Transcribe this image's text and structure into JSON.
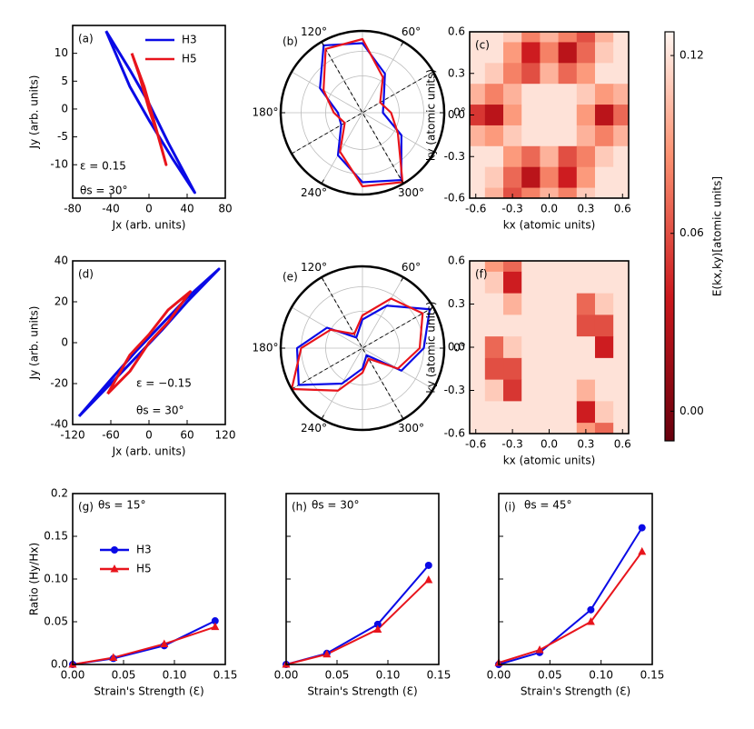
{
  "chart_data": [
    {
      "type": "line",
      "label": "(a)",
      "xlabel": "Jx (arb. units)",
      "ylabel": "Jy (arb. units)",
      "xlim": [
        -80,
        80
      ],
      "xticks": [
        -80,
        -40,
        0,
        40,
        80
      ],
      "ylim": [
        -16,
        15
      ],
      "yticks": [
        -10,
        -5,
        0,
        5,
        10
      ],
      "legend": "upper right",
      "annotations": [
        "ε = 0.15",
        "θs = 30°"
      ],
      "series": [
        {
          "name": "H3",
          "color": "#0a0ae6",
          "x": [
            -45,
            -20,
            0,
            20,
            48,
            25,
            0,
            -20,
            -45
          ],
          "values": [
            14,
            7,
            1,
            -6,
            -15,
            -9,
            -2,
            4,
            14
          ]
        },
        {
          "name": "H5",
          "color": "#e8141c",
          "x": [
            -18,
            -5,
            5,
            18,
            10,
            0,
            -10,
            -18
          ],
          "values": [
            10,
            4,
            -2,
            -10,
            -5,
            0,
            6,
            10
          ]
        }
      ]
    },
    {
      "type": "polar",
      "label": "(b)",
      "theta": [
        0,
        30,
        60,
        90,
        120,
        150,
        180,
        210,
        240,
        270,
        300,
        330
      ],
      "rlim": [
        0,
        1
      ],
      "rticks": [
        0.45,
        0.75
      ],
      "dashed_angles": [
        30,
        120
      ],
      "thetaticks": [
        {
          "value": 0,
          "label": "0°"
        },
        {
          "value": 60,
          "label": "60°"
        },
        {
          "value": 120,
          "label": "120°"
        },
        {
          "value": 180,
          "label": "180°"
        },
        {
          "value": 240,
          "label": "240°"
        },
        {
          "value": 300,
          "label": "300°"
        }
      ],
      "series": [
        {
          "color": "#0a0ae6",
          "values": [
            0.25,
            0.3,
            0.55,
            0.85,
            0.95,
            0.6,
            0.3,
            0.3,
            0.6,
            0.85,
            0.95,
            0.55
          ]
        },
        {
          "color": "#e8141c",
          "values": [
            0.35,
            0.25,
            0.5,
            0.9,
            0.9,
            0.55,
            0.35,
            0.25,
            0.55,
            0.9,
            0.98,
            0.5
          ]
        }
      ]
    },
    {
      "type": "heatmap",
      "label": "(c)",
      "xlabel": "kx (atomic units)",
      "ylabel": "ky (atomic units)",
      "xlim": [
        -0.65,
        0.65
      ],
      "ylim": [
        -0.6,
        0.6
      ],
      "xticks": [
        -0.6,
        -0.3,
        {
          "value": 0,
          "label": "0.0"
        },
        0.3,
        0.6
      ],
      "yticks": [
        -0.6,
        -0.3,
        {
          "value": 0,
          "label": "0.0"
        },
        0.3,
        0.6
      ],
      "x": [
        -0.6,
        -0.45,
        -0.3,
        -0.15,
        0,
        0.15,
        0.3,
        0.45,
        0.6
      ],
      "y": [
        0.6,
        0.45,
        0.3,
        0.15,
        0,
        -0.15,
        -0.3,
        -0.45,
        -0.6
      ],
      "z": [
        [
          0.12,
          0.12,
          0.11,
          0.08,
          0.1,
          0.08,
          0.06,
          0.1,
          0.12
        ],
        [
          0.12,
          0.12,
          0.09,
          0.04,
          0.08,
          0.03,
          0.07,
          0.11,
          0.12
        ],
        [
          0.12,
          0.11,
          0.08,
          0.06,
          0.1,
          0.07,
          0.09,
          0.12,
          0.12
        ],
        [
          0.1,
          0.08,
          0.1,
          0.12,
          0.12,
          0.12,
          0.11,
          0.09,
          0.1
        ],
        [
          0.05,
          0.03,
          0.09,
          0.12,
          0.12,
          0.12,
          0.09,
          0.03,
          0.07
        ],
        [
          0.1,
          0.09,
          0.11,
          0.12,
          0.12,
          0.12,
          0.1,
          0.08,
          0.1
        ],
        [
          0.12,
          0.12,
          0.09,
          0.07,
          0.1,
          0.06,
          0.08,
          0.11,
          0.12
        ],
        [
          0.12,
          0.11,
          0.07,
          0.03,
          0.08,
          0.04,
          0.09,
          0.12,
          0.12
        ],
        [
          0.12,
          0.1,
          0.06,
          0.08,
          0.1,
          0.08,
          0.11,
          0.12,
          0.12
        ]
      ],
      "colorbar": {
        "label": "E(kx,ky)[atomic units]",
        "lim": [
          -0.01,
          0.128
        ],
        "ticks": [
          {
            "value": 0,
            "label": "0.00"
          },
          0.06,
          0.12
        ]
      }
    },
    {
      "type": "line",
      "label": "(d)",
      "xlabel": "Jx (arb. units)",
      "ylabel": "Jy (arb. units)",
      "xlim": [
        -120,
        120
      ],
      "xticks": [
        -120,
        -60,
        0,
        60,
        120
      ],
      "ylim": [
        -40,
        40
      ],
      "yticks": [
        -40,
        -20,
        0,
        20,
        40
      ],
      "annotations": [
        "ε = −0.15",
        "θs = 30°"
      ],
      "series": [
        {
          "color": "#0a0ae6",
          "x": [
            -110,
            -60,
            -20,
            20,
            60,
            110,
            60,
            20,
            -20,
            -60,
            -110
          ],
          "values": [
            -36,
            -20,
            -7,
            6,
            20,
            36,
            22,
            9,
            -4,
            -18,
            -36
          ]
        },
        {
          "color": "#e8141c",
          "x": [
            -65,
            -30,
            0,
            30,
            65,
            30,
            0,
            -30,
            -65
          ],
          "values": [
            -25,
            -14,
            0,
            10,
            25,
            16,
            4,
            -6,
            -25
          ]
        }
      ]
    },
    {
      "type": "polar",
      "label": "(e)",
      "theta": [
        0,
        30,
        60,
        90,
        120,
        150,
        180,
        210,
        240,
        270,
        300,
        330
      ],
      "rlim": [
        0,
        1
      ],
      "rticks": [
        0.45,
        0.75
      ],
      "dashed_angles": [
        30,
        300
      ],
      "thetaticks": [
        {
          "value": 0,
          "label": "0°"
        },
        {
          "value": 60,
          "label": "60°"
        },
        {
          "value": 120,
          "label": "120°"
        },
        {
          "value": 180,
          "label": "180°"
        },
        {
          "value": 240,
          "label": "240°"
        },
        {
          "value": 300,
          "label": "300°"
        }
      ],
      "series": [
        {
          "color": "#0a0ae6",
          "values": [
            0.75,
            0.95,
            0.6,
            0.35,
            0.15,
            0.5,
            0.8,
            0.9,
            0.5,
            0.25,
            0.1,
            0.55
          ]
        },
        {
          "color": "#e8141c",
          "values": [
            0.7,
            0.85,
            0.7,
            0.4,
            0.2,
            0.45,
            0.75,
            1.0,
            0.6,
            0.3,
            0.15,
            0.5
          ]
        }
      ]
    },
    {
      "type": "heatmap",
      "label": "(f)",
      "xlabel": "kx (atomic units)",
      "ylabel": "ky (atomic units)",
      "xlim": [
        -0.65,
        0.65
      ],
      "ylim": [
        -0.6,
        0.6
      ],
      "xticks": [
        -0.6,
        -0.3,
        {
          "value": 0,
          "label": "0.0"
        },
        0.3,
        0.6
      ],
      "yticks": [
        -0.6,
        -0.3,
        {
          "value": 0,
          "label": "0.0"
        },
        0.3,
        0.6
      ],
      "x": [
        -0.6,
        -0.45,
        -0.3,
        -0.15,
        0,
        0.15,
        0.3,
        0.45,
        0.6
      ],
      "y": [
        0.6,
        0.45,
        0.3,
        0.15,
        0,
        -0.15,
        -0.3,
        -0.45,
        -0.6
      ],
      "z": [
        [
          0.12,
          0.09,
          0.07,
          0.12,
          0.12,
          0.12,
          0.12,
          0.12,
          0.12
        ],
        [
          0.12,
          0.11,
          0.04,
          0.12,
          0.12,
          0.12,
          0.12,
          0.12,
          0.12
        ],
        [
          0.12,
          0.12,
          0.1,
          0.12,
          0.12,
          0.12,
          0.07,
          0.11,
          0.12
        ],
        [
          0.12,
          0.12,
          0.12,
          0.12,
          0.12,
          0.12,
          0.06,
          0.06,
          0.12
        ],
        [
          0.12,
          0.07,
          0.11,
          0.12,
          0.12,
          0.12,
          0.12,
          0.04,
          0.12
        ],
        [
          0.12,
          0.06,
          0.06,
          0.12,
          0.12,
          0.12,
          0.12,
          0.12,
          0.12
        ],
        [
          0.12,
          0.11,
          0.05,
          0.12,
          0.12,
          0.12,
          0.1,
          0.12,
          0.12
        ],
        [
          0.12,
          0.12,
          0.12,
          0.12,
          0.12,
          0.12,
          0.04,
          0.11,
          0.12
        ],
        [
          0.12,
          0.12,
          0.12,
          0.12,
          0.12,
          0.12,
          0.09,
          0.07,
          0.12
        ]
      ]
    },
    {
      "type": "line",
      "label": "(g)",
      "xlabel": "Strain's Strength (Ɛ)",
      "ylabel": "Ratio (Hy/Hx)",
      "xlim": [
        0,
        0.15
      ],
      "xticks": [
        {
          "value": 0,
          "label": "0.00"
        },
        0.05,
        {
          "value": 0.1,
          "label": "0.10"
        },
        0.15
      ],
      "ylim": [
        0,
        0.2
      ],
      "yticks": [
        {
          "value": 0,
          "label": "0.0"
        },
        0.05,
        {
          "value": 0.1,
          "label": "0.10"
        },
        0.15,
        0.2
      ],
      "legend": "center left",
      "annotations": [
        "θs = 15°"
      ],
      "series": [
        {
          "name": "H3",
          "color": "#0a0ae6",
          "marker": "o",
          "x": [
            0,
            0.04,
            0.09,
            0.14
          ],
          "values": [
            0,
            0.007,
            0.022,
            0.051
          ]
        },
        {
          "name": "H5",
          "color": "#e8141c",
          "marker": "^",
          "x": [
            0,
            0.04,
            0.09,
            0.14
          ],
          "values": [
            0,
            0.008,
            0.024,
            0.044
          ]
        }
      ]
    },
    {
      "type": "line",
      "label": "(h)",
      "xlabel": "Strain's Strength (Ɛ)",
      "xlim": [
        0,
        0.15
      ],
      "xticks": [
        {
          "value": 0,
          "label": "0.00"
        },
        0.05,
        {
          "value": 0.1,
          "label": "0.10"
        },
        0.15
      ],
      "ylim": [
        0,
        0.2
      ],
      "yticks": [
        0,
        0.05,
        0.1,
        0.15,
        0.2
      ],
      "ytick_labels": false,
      "annotations": [
        "θs = 30°"
      ],
      "series": [
        {
          "color": "#0a0ae6",
          "marker": "o",
          "x": [
            0,
            0.04,
            0.09,
            0.14
          ],
          "values": [
            0,
            0.013,
            0.047,
            0.116
          ]
        },
        {
          "color": "#e8141c",
          "marker": "^",
          "x": [
            0,
            0.04,
            0.09,
            0.14
          ],
          "values": [
            0,
            0.012,
            0.041,
            0.099
          ]
        }
      ]
    },
    {
      "type": "line",
      "label": "(i)",
      "xlabel": "Strain's Strength (Ɛ)",
      "xlim": [
        0,
        0.15
      ],
      "xticks": [
        {
          "value": 0,
          "label": "0.00"
        },
        0.05,
        {
          "value": 0.1,
          "label": "0.10"
        },
        0.15
      ],
      "ylim": [
        0,
        0.2
      ],
      "yticks": [
        0,
        0.05,
        0.1,
        0.15,
        0.2
      ],
      "ytick_labels": false,
      "annotations": [
        "θs = 45°"
      ],
      "series": [
        {
          "color": "#0a0ae6",
          "marker": "o",
          "x": [
            0,
            0.04,
            0.09,
            0.14
          ],
          "values": [
            0,
            0.014,
            0.064,
            0.16
          ]
        },
        {
          "color": "#e8141c",
          "marker": "^",
          "x": [
            0,
            0.04,
            0.09,
            0.14
          ],
          "values": [
            0.002,
            0.017,
            0.05,
            0.132
          ]
        }
      ]
    }
  ]
}
